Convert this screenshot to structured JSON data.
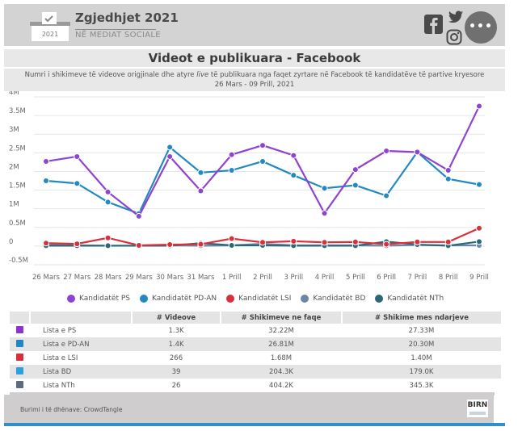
{
  "header": {
    "brand_title": "Zgjedhjet 2021",
    "brand_subtitle": "NË MEDIAT SOCIALE",
    "logo_year": "2021",
    "more_label": "•••"
  },
  "title": "Videot e publikuara - Facebook",
  "subtitle_part1": "Numri i shikimeve të videove origjinale dhe atyre ",
  "subtitle_italic": "live",
  "subtitle_part2": " të publikuara nga faqet zyrtare në Facebook të kandidatëve të partive kryesore",
  "subtitle_line2": "26 Mars - 09 Prill, 2021",
  "chart_data": {
    "type": "line",
    "title": "Videot e publikuara - Facebook",
    "xlabel": "",
    "ylabel": "",
    "ylim": [
      -0.5,
      4
    ],
    "y_ticks": [
      4,
      3.5,
      3,
      2.5,
      2,
      1.5,
      1,
      0.5,
      0,
      -0.5
    ],
    "y_tick_labels": [
      "4M",
      "3.5M",
      "3M",
      "2.5M",
      "2M",
      "1.5M",
      "1M",
      "0.5M",
      "0",
      "-0.5M"
    ],
    "grid": true,
    "legend_position": "bottom",
    "categories": [
      "26 Mars",
      "27 Mars",
      "28 Mars",
      "29 Mars",
      "30 Mars",
      "31 Mars",
      "1 Prill",
      "2 Prill",
      "3 Prill",
      "4 Prill",
      "5 Prill",
      "6 Prill",
      "7 Prill",
      "8 Prill",
      "9 Prill"
    ],
    "series": [
      {
        "name": "Kandidatët PS",
        "color": "#8e44d1",
        "values": [
          2.27,
          2.4,
          1.45,
          0.8,
          2.4,
          1.48,
          2.45,
          2.7,
          2.43,
          0.88,
          2.05,
          2.55,
          2.52,
          2.03,
          3.75
        ]
      },
      {
        "name": "Kandidatët PD-AN",
        "color": "#2389c2",
        "values": [
          1.75,
          1.68,
          1.18,
          0.87,
          2.65,
          1.97,
          2.03,
          2.27,
          1.9,
          1.55,
          1.63,
          1.35,
          2.52,
          1.8,
          1.65
        ]
      },
      {
        "name": "Kandidatët LSI",
        "color": "#d9303c",
        "values": [
          0.08,
          0.06,
          0.22,
          0.02,
          0.04,
          0.05,
          0.2,
          0.1,
          0.13,
          0.1,
          0.11,
          0.05,
          0.11,
          0.11,
          0.48
        ]
      },
      {
        "name": "Kandidatët BD",
        "color": "#6a86a8",
        "values": [
          0.03,
          0.02,
          0.01,
          0.01,
          0.02,
          0.01,
          0.02,
          0.06,
          0.02,
          0.02,
          0.02,
          0.01,
          0.03,
          0.02,
          0.02
        ]
      },
      {
        "name": "Kandidatët NTh",
        "color": "#2a6878",
        "values": [
          0.01,
          0.01,
          0.01,
          0.01,
          0.01,
          0.08,
          0.02,
          0.02,
          0.01,
          0.01,
          0.01,
          0.12,
          0.04,
          0.01,
          0.12
        ]
      }
    ]
  },
  "table": {
    "headers": [
      "",
      "",
      "# Videove",
      "# Shikimeve ne faqe",
      "# Shikime mes ndarjeve"
    ],
    "rows": [
      {
        "icon": "ps-logo-icon",
        "icon_color": "#8e33cf",
        "name": "Lista e PS",
        "videos": "1.3K",
        "page_views": "32.22M",
        "share_views": "27.33M"
      },
      {
        "icon": "pd-logo-icon",
        "icon_color": "#1f86c8",
        "name": "Lista e PD-AN",
        "videos": "1.4K",
        "page_views": "26.81M",
        "share_views": "20.30M"
      },
      {
        "icon": "lsi-logo-icon",
        "icon_color": "#d5303c",
        "name": "Lista e LSI",
        "videos": "266",
        "page_views": "1.68M",
        "share_views": "1.40M"
      },
      {
        "icon": "bd-logo-icon",
        "icon_color": "#2b9fe0",
        "name": "Lista BD",
        "videos": "39",
        "page_views": "204.3K",
        "share_views": "179.0K"
      },
      {
        "icon": "nth-logo-icon",
        "icon_color": "#5b6b80",
        "name": "Lista NTh",
        "videos": "26",
        "page_views": "404.2K",
        "share_views": "345.3K"
      }
    ]
  },
  "footer": {
    "source": "Burimi i të dhënave: CrowdTangle",
    "birn_logo": "BIRN"
  }
}
